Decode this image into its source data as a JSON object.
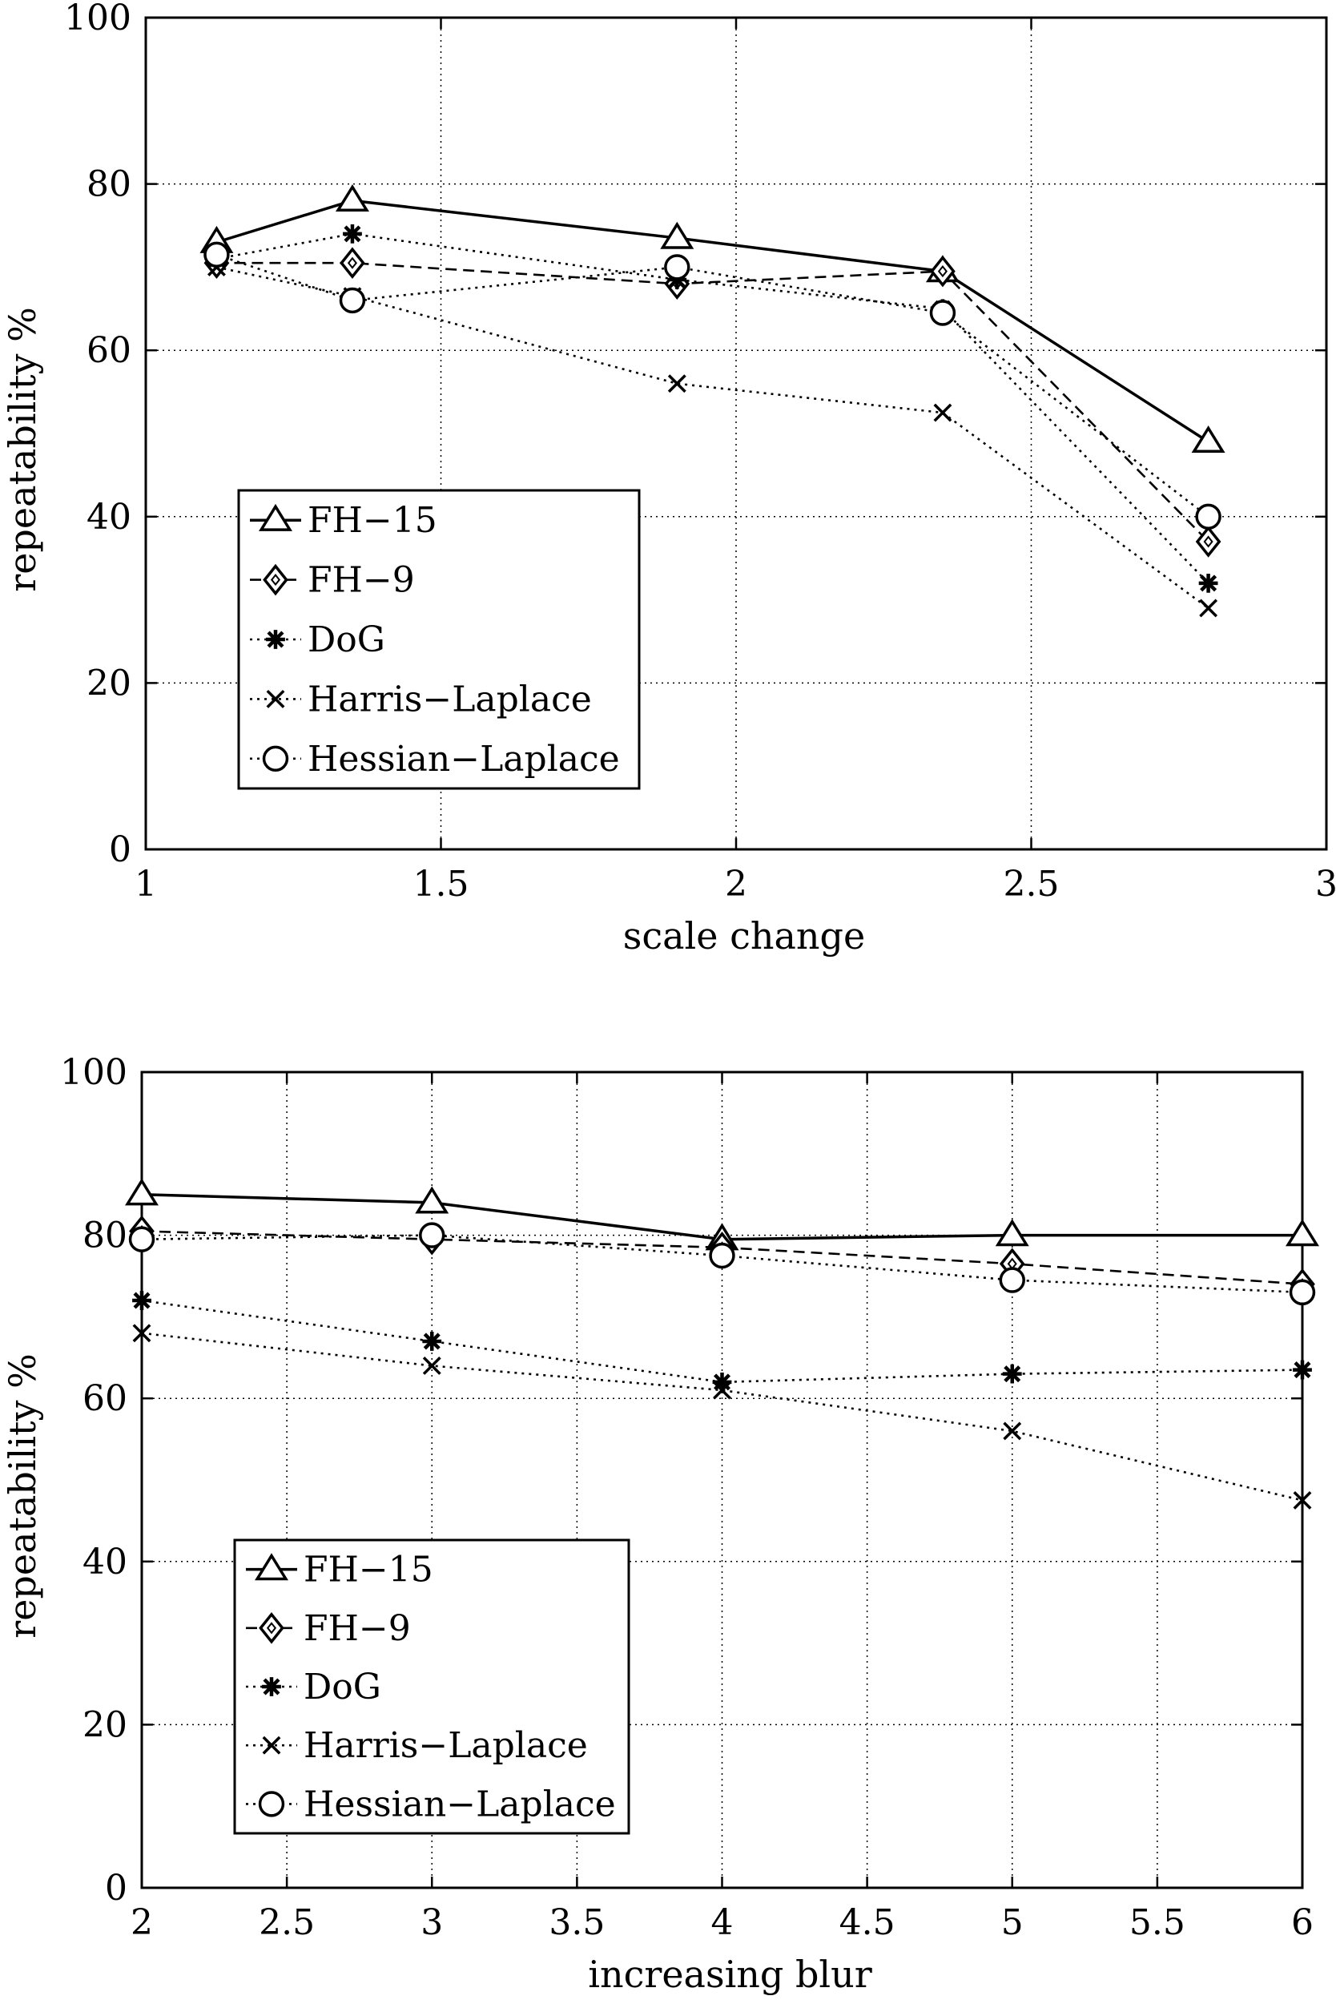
{
  "chart_data": [
    {
      "type": "line",
      "title": "",
      "xlabel": "scale change",
      "ylabel": "repeatability %",
      "xlim": [
        1,
        3
      ],
      "ylim": [
        0,
        100
      ],
      "xticks": [
        1,
        1.5,
        2,
        2.5,
        3
      ],
      "xtick_labels": [
        "1",
        "1.5",
        "2",
        "2.5",
        "3"
      ],
      "yticks": [
        0,
        20,
        40,
        60,
        80,
        100
      ],
      "ytick_labels": [
        "0",
        "20",
        "40",
        "60",
        "80",
        "100"
      ],
      "grid": true,
      "legend_position": "lower-left",
      "series": [
        {
          "name": "FH−15",
          "marker": "triangle",
          "line": "solid",
          "x": [
            1.12,
            1.35,
            1.9,
            2.35,
            2.8
          ],
          "y": [
            73,
            78,
            73.5,
            69.5,
            49
          ]
        },
        {
          "name": "FH−9",
          "marker": "diamond",
          "line": "dashed",
          "x": [
            1.12,
            1.35,
            1.9,
            2.35,
            2.8
          ],
          "y": [
            70.5,
            70.5,
            68,
            69.5,
            37
          ]
        },
        {
          "name": "DoG",
          "marker": "asterisk",
          "line": "dotted",
          "x": [
            1.12,
            1.35,
            1.9,
            2.35,
            2.8
          ],
          "y": [
            71,
            74,
            68.5,
            65,
            32
          ]
        },
        {
          "name": "Harris−Laplace",
          "marker": "cross",
          "line": "dotted",
          "x": [
            1.12,
            1.35,
            1.9,
            2.35,
            2.8
          ],
          "y": [
            70,
            66.5,
            56,
            52.5,
            29
          ]
        },
        {
          "name": "Hessian−Laplace",
          "marker": "circle",
          "line": "dotted",
          "x": [
            1.12,
            1.35,
            1.9,
            2.35,
            2.8
          ],
          "y": [
            71.5,
            66,
            70,
            64.5,
            40
          ]
        }
      ]
    },
    {
      "type": "line",
      "title": "",
      "xlabel": "increasing blur",
      "ylabel": "repeatability %",
      "xlim": [
        2,
        6
      ],
      "ylim": [
        0,
        100
      ],
      "xticks": [
        2,
        2.5,
        3,
        3.5,
        4,
        4.5,
        5,
        5.5,
        6
      ],
      "xtick_labels": [
        "2",
        "2.5",
        "3",
        "3.5",
        "4",
        "4.5",
        "5",
        "5.5",
        "6"
      ],
      "yticks": [
        0,
        20,
        40,
        60,
        80,
        100
      ],
      "ytick_labels": [
        "0",
        "20",
        "40",
        "60",
        "80",
        "100"
      ],
      "grid": true,
      "legend_position": "lower-left",
      "series": [
        {
          "name": "FH−15",
          "marker": "triangle",
          "line": "solid",
          "x": [
            2,
            3,
            4,
            5,
            6
          ],
          "y": [
            85,
            84,
            79.5,
            80,
            80
          ]
        },
        {
          "name": "FH−9",
          "marker": "diamond",
          "line": "dashed",
          "x": [
            2,
            3,
            4,
            5,
            6
          ],
          "y": [
            80.5,
            79.5,
            78.5,
            76.5,
            74
          ]
        },
        {
          "name": "DoG",
          "marker": "asterisk",
          "line": "dotted",
          "x": [
            2,
            3,
            4,
            5,
            6
          ],
          "y": [
            72,
            67,
            62,
            63,
            63.5
          ]
        },
        {
          "name": "Harris−Laplace",
          "marker": "cross",
          "line": "dotted",
          "x": [
            2,
            3,
            4,
            5,
            6
          ],
          "y": [
            68,
            64,
            61,
            56,
            47.5
          ]
        },
        {
          "name": "Hessian−Laplace",
          "marker": "circle",
          "line": "dotted",
          "x": [
            2,
            3,
            4,
            5,
            6
          ],
          "y": [
            79.5,
            80,
            77.5,
            74.5,
            73
          ]
        }
      ]
    }
  ]
}
